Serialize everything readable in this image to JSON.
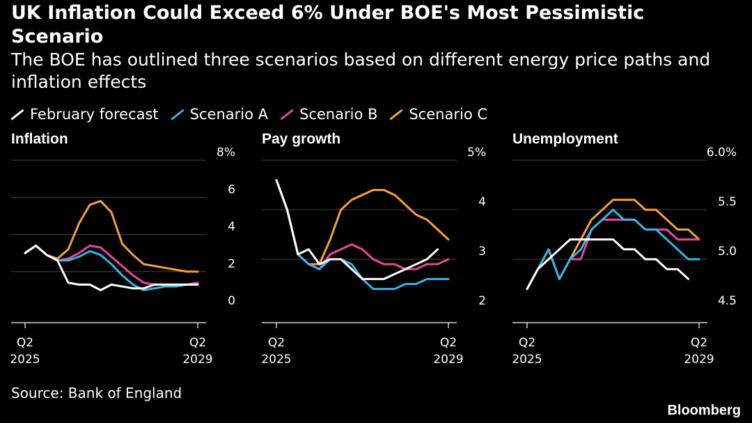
{
  "header": {
    "title": "UK Inflation Could Exceed 6% Under BOE's Most Pessimistic Scenario",
    "subtitle": "The BOE has outlined three scenarios based on different energy price paths and inflation effects"
  },
  "legend": [
    {
      "label": "February forecast",
      "color": "#ffffff"
    },
    {
      "label": "Scenario A",
      "color": "#33b5e8"
    },
    {
      "label": "Scenario B",
      "color": "#e8489b"
    },
    {
      "label": "Scenario C",
      "color": "#f5a13a"
    }
  ],
  "footer": {
    "source": "Source: Bank of England",
    "brand": "Bloomberg"
  },
  "chart_data": [
    {
      "type": "line",
      "title": "Inflation",
      "x_start": "Q2 2025",
      "x_end": "Q2 2029",
      "x_tick_labels": [
        [
          "Q2",
          "2025"
        ],
        [
          "Q2",
          "2029"
        ]
      ],
      "ylim": [
        0,
        8
      ],
      "yticks": [
        {
          "value": 0,
          "label": "0"
        },
        {
          "value": 2,
          "label": "2"
        },
        {
          "value": 4,
          "label": "4"
        },
        {
          "value": 6,
          "label": "6"
        },
        {
          "value": 8,
          "label": "8%"
        }
      ],
      "series": [
        {
          "name": "February forecast",
          "color": "#ffffff",
          "values": [
            3.0,
            3.4,
            2.9,
            2.6,
            1.4,
            1.3,
            1.3,
            1.0,
            1.3,
            1.2,
            1.1,
            1.1,
            1.3,
            1.3,
            1.3,
            1.3,
            1.3
          ]
        },
        {
          "name": "Scenario A",
          "color": "#33b5e8",
          "values": [
            3.0,
            3.4,
            2.9,
            2.6,
            2.6,
            2.8,
            3.1,
            2.9,
            2.4,
            1.8,
            1.3,
            1.0,
            1.1,
            1.2,
            1.2,
            1.3,
            1.3
          ]
        },
        {
          "name": "Scenario B",
          "color": "#e8489b",
          "values": [
            3.0,
            3.4,
            2.9,
            2.6,
            2.7,
            3.0,
            3.4,
            3.3,
            2.8,
            2.3,
            1.8,
            1.4,
            1.3,
            1.3,
            1.3,
            1.3,
            1.4
          ]
        },
        {
          "name": "Scenario C",
          "color": "#f5a13a",
          "values": [
            3.0,
            3.4,
            2.9,
            2.7,
            3.2,
            4.6,
            5.6,
            5.8,
            5.2,
            3.5,
            2.9,
            2.4,
            2.3,
            2.2,
            2.1,
            2.0,
            2.0
          ]
        }
      ]
    },
    {
      "type": "line",
      "title": "Pay growth",
      "x_start": "Q2 2025",
      "x_end": "Q2 2029",
      "x_tick_labels": [
        [
          "Q2",
          "2025"
        ],
        [
          "Q2",
          "2029"
        ]
      ],
      "ylim": [
        2,
        5
      ],
      "yticks": [
        {
          "value": 2,
          "label": "2"
        },
        {
          "value": 3,
          "label": "3"
        },
        {
          "value": 4,
          "label": "4"
        },
        {
          "value": 5,
          "label": "5%"
        }
      ],
      "series": [
        {
          "name": "February forecast",
          "color": "#ffffff",
          "values": [
            4.6,
            4.0,
            3.1,
            3.2,
            2.9,
            3.0,
            3.0,
            2.8,
            2.6,
            2.6,
            2.6,
            2.7,
            2.8,
            2.9,
            3.0,
            3.2
          ]
        },
        {
          "name": "Scenario A",
          "color": "#33b5e8",
          "values": [
            4.6,
            4.0,
            3.1,
            2.9,
            2.8,
            3.0,
            3.0,
            2.9,
            2.6,
            2.4,
            2.4,
            2.4,
            2.5,
            2.5,
            2.6,
            2.6,
            2.6
          ]
        },
        {
          "name": "Scenario B",
          "color": "#e8489b",
          "values": [
            4.6,
            4.0,
            3.1,
            2.9,
            2.8,
            3.1,
            3.2,
            3.3,
            3.2,
            3.0,
            2.9,
            2.9,
            2.8,
            2.8,
            2.9,
            2.9,
            3.0
          ]
        },
        {
          "name": "Scenario C",
          "color": "#f5a13a",
          "values": [
            4.6,
            4.0,
            3.1,
            2.9,
            2.9,
            3.4,
            4.0,
            4.2,
            4.3,
            4.4,
            4.4,
            4.3,
            4.1,
            3.9,
            3.8,
            3.6,
            3.4
          ]
        }
      ]
    },
    {
      "type": "line",
      "title": "Unemployment",
      "x_start": "Q2 2025",
      "x_end": "Q2 2029",
      "x_tick_labels": [
        [
          "Q2",
          "2025"
        ],
        [
          "Q2",
          "2029"
        ]
      ],
      "ylim": [
        4.5,
        6.0
      ],
      "yticks": [
        {
          "value": 4.5,
          "label": "4.5"
        },
        {
          "value": 5.0,
          "label": "5.0"
        },
        {
          "value": 5.5,
          "label": "5.5"
        },
        {
          "value": 6.0,
          "label": "6.0%"
        }
      ],
      "series": [
        {
          "name": "February forecast",
          "color": "#ffffff",
          "values": [
            4.7,
            4.9,
            5.0,
            5.1,
            5.2,
            5.2,
            5.2,
            5.2,
            5.2,
            5.1,
            5.1,
            5.0,
            5.0,
            4.9,
            4.9,
            4.8
          ]
        },
        {
          "name": "Scenario A",
          "color": "#33b5e8",
          "values": [
            4.7,
            4.9,
            5.1,
            4.8,
            5.0,
            5.1,
            5.3,
            5.4,
            5.5,
            5.4,
            5.4,
            5.3,
            5.3,
            5.2,
            5.1,
            5.0,
            5.0
          ]
        },
        {
          "name": "Scenario B",
          "color": "#e8489b",
          "values": [
            4.7,
            4.9,
            5.1,
            4.8,
            5.0,
            5.0,
            5.3,
            5.4,
            5.4,
            5.4,
            5.4,
            5.3,
            5.3,
            5.3,
            5.2,
            5.2,
            5.2
          ]
        },
        {
          "name": "Scenario C",
          "color": "#f5a13a",
          "values": [
            4.7,
            4.9,
            5.1,
            4.8,
            5.0,
            5.2,
            5.4,
            5.5,
            5.6,
            5.6,
            5.6,
            5.5,
            5.5,
            5.4,
            5.3,
            5.3,
            5.2
          ]
        }
      ]
    }
  ]
}
